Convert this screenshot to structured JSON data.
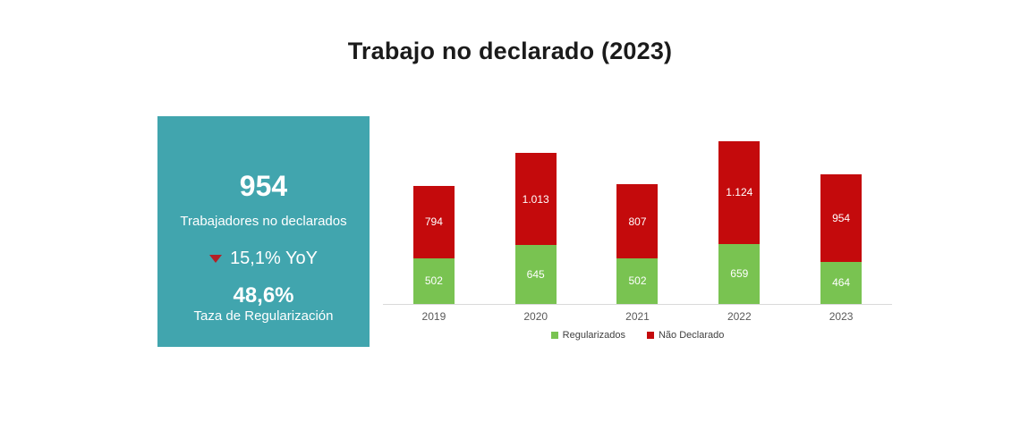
{
  "title": "Trabajo no declarado (2023)",
  "summary_card": {
    "value": "954",
    "value_label": "Trabajadores no declarados",
    "yoy_text": "15,1% YoY",
    "yoy_direction": "down",
    "rate_value": "48,6%",
    "rate_label": "Taza de Regularización",
    "background_color": "#41a5ae",
    "text_color": "#ffffff",
    "arrow_color": "#b42025"
  },
  "chart_data": {
    "type": "bar",
    "stacked": true,
    "categories": [
      "2019",
      "2020",
      "2021",
      "2022",
      "2023"
    ],
    "series": [
      {
        "name": "Regularizados",
        "color": "#79c351",
        "values": [
          502,
          645,
          502,
          659,
          464
        ],
        "labels": [
          "502",
          "645",
          "502",
          "659",
          "464"
        ]
      },
      {
        "name": "Não Declarado",
        "color": "#c40a0c",
        "values": [
          794,
          1013,
          807,
          1124,
          954
        ],
        "labels": [
          "794",
          "1.013",
          "807",
          "1.124",
          "954"
        ]
      }
    ],
    "totals": [
      1296,
      1658,
      1309,
      1783,
      1418
    ],
    "ylim": [
      0,
      1920
    ],
    "gridlines": false,
    "legend_position": "bottom",
    "axis_color": "#d9d9d9",
    "tick_label_color": "#595959",
    "bar_label_color": "#ffffff"
  }
}
